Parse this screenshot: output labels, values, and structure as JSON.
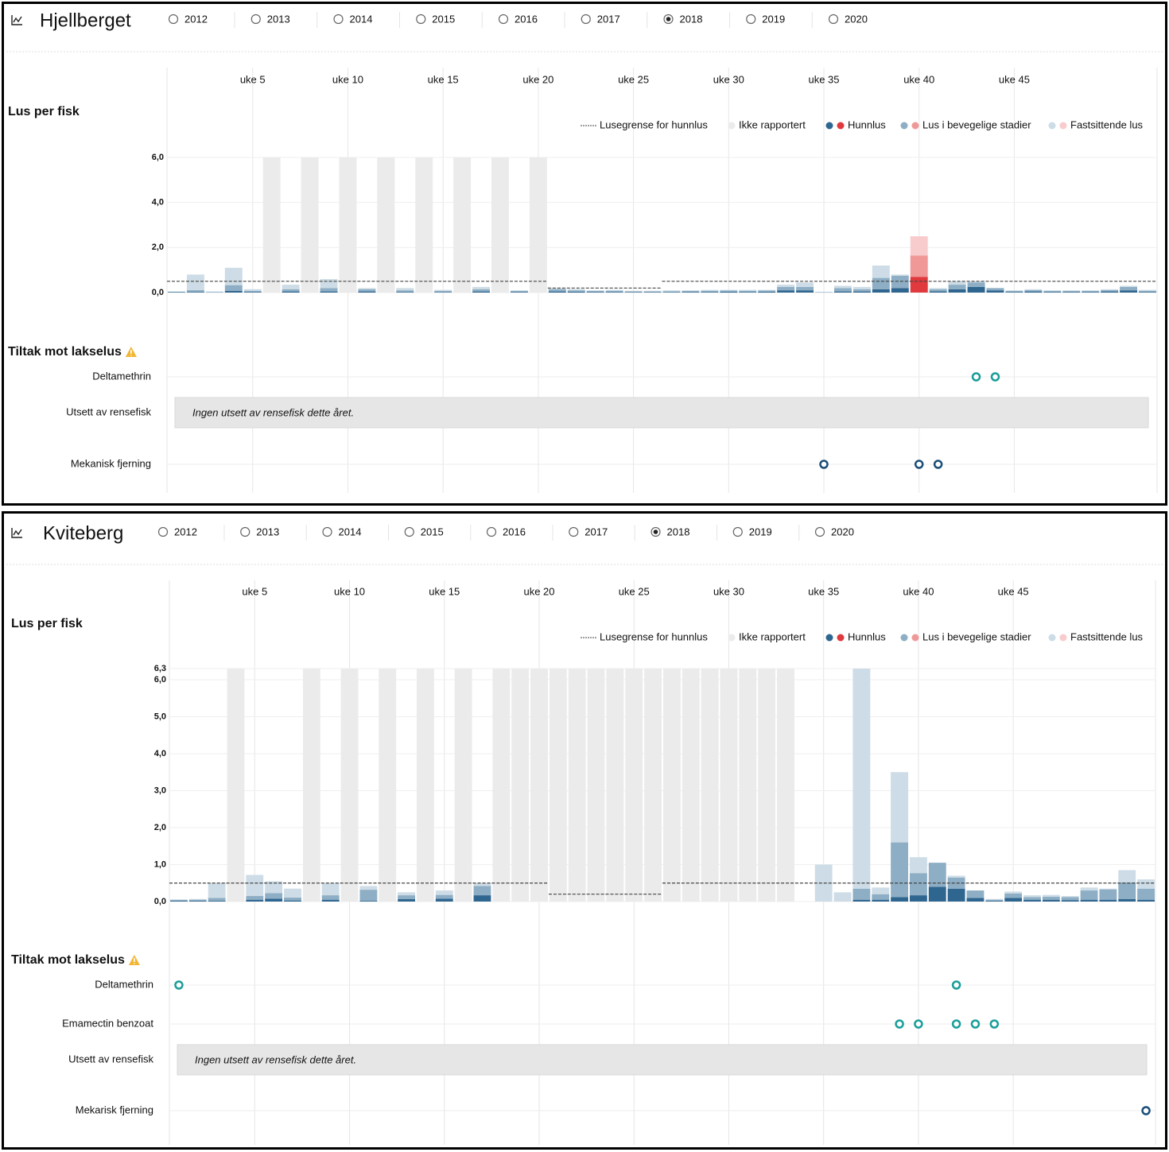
{
  "chart_data": [
    {
      "type": "bar",
      "title": "Hjellberget",
      "years": [
        2012,
        2013,
        2014,
        2015,
        2016,
        2017,
        2018,
        2019,
        2020
      ],
      "selected_year": 2018,
      "y_label": "Lus per fisk",
      "x": [
        1,
        2,
        3,
        4,
        5,
        6,
        7,
        8,
        9,
        10,
        11,
        12,
        13,
        14,
        15,
        16,
        17,
        18,
        19,
        20,
        21,
        22,
        23,
        24,
        25,
        26,
        27,
        28,
        29,
        30,
        31,
        32,
        33,
        34,
        35,
        36,
        37,
        38,
        39,
        40,
        41,
        42,
        43,
        44,
        45,
        46,
        47,
        48,
        49,
        50,
        51,
        52
      ],
      "xlim": [
        0.5,
        52.5
      ],
      "xticks": [
        {
          "value": 5,
          "label": "uke 5"
        },
        {
          "value": 10,
          "label": "uke 10"
        },
        {
          "value": 15,
          "label": "uke 15"
        },
        {
          "value": 20,
          "label": "uke 20"
        },
        {
          "value": 25,
          "label": "uke 25"
        },
        {
          "value": 30,
          "label": "uke 30"
        },
        {
          "value": 35,
          "label": "uke 35"
        },
        {
          "value": 40,
          "label": "uke 40"
        },
        {
          "value": 45,
          "label": "uke 45"
        }
      ],
      "ylim": [
        0,
        6
      ],
      "yticks": [
        {
          "value": 0,
          "label": "0,0"
        },
        {
          "value": 2,
          "label": "2,0"
        },
        {
          "value": 4,
          "label": "4,0"
        },
        {
          "value": 6,
          "label": "6,0"
        }
      ],
      "grid": true,
      "series": [
        {
          "name": "Lusegrense for hunnlus",
          "type": "line",
          "color": "#444444",
          "values": [
            0.5,
            0.5,
            0.5,
            0.5,
            0.5,
            0.5,
            0.5,
            0.5,
            0.5,
            0.5,
            0.5,
            0.5,
            0.5,
            0.5,
            0.5,
            0.5,
            0.5,
            0.5,
            0.5,
            0.5,
            0.2,
            0.2,
            0.2,
            0.2,
            0.2,
            0.2,
            0.5,
            0.5,
            0.5,
            0.5,
            0.5,
            0.5,
            0.5,
            0.5,
            0.5,
            0.5,
            0.5,
            0.5,
            0.5,
            0.5,
            0.5,
            0.5,
            0.5,
            0.5,
            0.5,
            0.5,
            0.5,
            0.5,
            0.5,
            0.5,
            0.5,
            0.5
          ]
        },
        {
          "name": "Ikke rapportert",
          "color": "#ebebeb",
          "values": [
            null,
            null,
            null,
            null,
            null,
            6,
            null,
            6,
            null,
            6,
            null,
            6,
            null,
            6,
            null,
            6,
            null,
            6,
            null,
            6,
            null,
            null,
            null,
            null,
            null,
            null,
            null,
            null,
            null,
            null,
            null,
            null,
            null,
            null,
            null,
            null,
            null,
            null,
            null,
            null,
            null,
            null,
            null,
            null,
            null,
            null,
            null,
            null,
            null,
            null,
            null,
            null
          ]
        },
        {
          "name": "Hunnlus",
          "color": "#2f6690",
          "alert_color": "#e0393e",
          "values": [
            0.02,
            0.03,
            0.01,
            0.08,
            0.03,
            null,
            0.05,
            null,
            0.05,
            null,
            0.05,
            null,
            0.03,
            null,
            0.02,
            null,
            0.05,
            null,
            0.03,
            null,
            0.05,
            0.04,
            0.03,
            0.03,
            0.02,
            0.02,
            0.02,
            0.03,
            0.03,
            0.04,
            0.03,
            0.04,
            0.1,
            0.1,
            0.01,
            0.05,
            0.05,
            0.15,
            0.2,
            0.7,
            0.06,
            0.15,
            0.25,
            0.1,
            0.03,
            0.05,
            0.03,
            0.03,
            0.03,
            0.05,
            0.1,
            0.03
          ]
        },
        {
          "name": "Lus i bevegelige stadier",
          "color": "#8daec4",
          "alert_color": "#f09898",
          "values": [
            0.02,
            0.08,
            0.02,
            0.25,
            0.05,
            null,
            0.1,
            null,
            0.15,
            null,
            0.1,
            null,
            0.07,
            null,
            0.05,
            null,
            0.1,
            null,
            0.04,
            null,
            0.1,
            0.06,
            0.04,
            0.05,
            0.03,
            0.03,
            0.04,
            0.04,
            0.05,
            0.05,
            0.05,
            0.05,
            0.15,
            0.15,
            0.01,
            0.15,
            0.1,
            0.5,
            0.55,
            0.95,
            0.09,
            0.2,
            0.2,
            0.1,
            0.04,
            0.06,
            0.04,
            0.04,
            0.04,
            0.06,
            0.15,
            0.05
          ]
        },
        {
          "name": "Fastsittende lus",
          "color": "#cddce6",
          "alert_color": "#f8cccc",
          "values": [
            0.01,
            0.69,
            0.02,
            0.77,
            0.07,
            null,
            0.2,
            null,
            0.4,
            null,
            0.05,
            null,
            0.1,
            null,
            0.05,
            null,
            0.1,
            null,
            0.03,
            null,
            0.05,
            0.05,
            0.03,
            0.04,
            0.03,
            0.03,
            0.04,
            0.03,
            0.04,
            0.03,
            0.04,
            0.03,
            0.1,
            0.2,
            0.01,
            0.1,
            0.1,
            0.55,
            0.05,
            0.85,
            0.05,
            0.15,
            0.05,
            0,
            0.03,
            0.04,
            0.03,
            0.03,
            0.03,
            0.04,
            0.05,
            0.04
          ]
        }
      ],
      "treatments_title": "Tiltak mot lakselus",
      "treatments": [
        {
          "name": "Deltamethrin",
          "color": "#1a9e9a",
          "weeks": [
            43,
            44
          ]
        },
        {
          "name": "Utsett av rensefisk",
          "note": "Ingen utsett av rensefisk dette året."
        },
        {
          "name": "Mekanisk fjerning",
          "color": "#1a4f7a",
          "weeks": [
            35,
            40,
            41
          ]
        }
      ]
    },
    {
      "type": "bar",
      "title": "Kviteberg",
      "years": [
        2012,
        2013,
        2014,
        2015,
        2016,
        2017,
        2018,
        2019,
        2020
      ],
      "selected_year": 2018,
      "y_label": "Lus per fisk",
      "x": [
        1,
        2,
        3,
        4,
        5,
        6,
        7,
        8,
        9,
        10,
        11,
        12,
        13,
        14,
        15,
        16,
        17,
        18,
        19,
        20,
        21,
        22,
        23,
        24,
        25,
        26,
        27,
        28,
        29,
        30,
        31,
        32,
        33,
        34,
        35,
        36,
        37,
        38,
        39,
        40,
        41,
        42,
        43,
        44,
        45,
        46,
        47,
        48,
        49,
        50,
        51,
        52
      ],
      "xlim": [
        0.5,
        52.5
      ],
      "xticks": [
        {
          "value": 5,
          "label": "uke 5"
        },
        {
          "value": 10,
          "label": "uke 10"
        },
        {
          "value": 15,
          "label": "uke 15"
        },
        {
          "value": 20,
          "label": "uke 20"
        },
        {
          "value": 25,
          "label": "uke 25"
        },
        {
          "value": 30,
          "label": "uke 30"
        },
        {
          "value": 35,
          "label": "uke 35"
        },
        {
          "value": 40,
          "label": "uke 40"
        },
        {
          "value": 45,
          "label": "uke 45"
        }
      ],
      "ylim": [
        0,
        6.3
      ],
      "yticks": [
        {
          "value": 0,
          "label": "0,0"
        },
        {
          "value": 1,
          "label": "1,0"
        },
        {
          "value": 2,
          "label": "2,0"
        },
        {
          "value": 3,
          "label": "3,0"
        },
        {
          "value": 4,
          "label": "4,0"
        },
        {
          "value": 5,
          "label": "5,0"
        },
        {
          "value": 6,
          "label": "6,0"
        },
        {
          "value": 6.3,
          "label": "6,3"
        }
      ],
      "grid": true,
      "series": [
        {
          "name": "Lusegrense for hunnlus",
          "type": "line",
          "color": "#444444",
          "values": [
            0.5,
            0.5,
            0.5,
            0.5,
            0.5,
            0.5,
            0.5,
            0.5,
            0.5,
            0.5,
            0.5,
            0.5,
            0.5,
            0.5,
            0.5,
            0.5,
            0.5,
            0.5,
            0.5,
            0.5,
            0.2,
            0.2,
            0.2,
            0.2,
            0.2,
            0.2,
            0.5,
            0.5,
            0.5,
            0.5,
            0.5,
            0.5,
            0.5,
            0.5,
            0.5,
            0.5,
            0.5,
            0.5,
            0.5,
            0.5,
            0.5,
            0.5,
            0.5,
            0.5,
            0.5,
            0.5,
            0.5,
            0.5,
            0.5,
            0.5,
            0.5,
            0.5
          ]
        },
        {
          "name": "Ikke rapportert",
          "color": "#ebebeb",
          "values": [
            null,
            null,
            null,
            6.3,
            null,
            null,
            null,
            6.3,
            null,
            6.3,
            null,
            6.3,
            null,
            6.3,
            null,
            6.3,
            null,
            6.3,
            6.3,
            6.3,
            6.3,
            6.3,
            6.3,
            6.3,
            6.3,
            6.3,
            6.3,
            6.3,
            6.3,
            6.3,
            6.3,
            6.3,
            6.3,
            null,
            null,
            null,
            null,
            null,
            null,
            null,
            null,
            null,
            null,
            null,
            null,
            null,
            null,
            null,
            null,
            null,
            null,
            null
          ]
        },
        {
          "name": "Hunnlus",
          "color": "#2f6690",
          "alert_color": "#e0393e",
          "values": [
            0.02,
            0.02,
            0.02,
            null,
            0.05,
            0.08,
            0.03,
            null,
            0.05,
            null,
            0.02,
            null,
            0.07,
            null,
            0.08,
            null,
            0.17,
            null,
            null,
            null,
            null,
            null,
            null,
            null,
            null,
            null,
            null,
            null,
            null,
            null,
            null,
            null,
            null,
            null,
            0,
            0,
            0.05,
            0.05,
            0.12,
            0.17,
            0.4,
            0.35,
            0.1,
            0.02,
            0.1,
            0.05,
            0.05,
            0.04,
            0.05,
            0.05,
            0.07,
            0.05
          ]
        },
        {
          "name": "Lus i bevegelige stadier",
          "color": "#8daec4",
          "alert_color": "#f09898",
          "values": [
            0.03,
            0.03,
            0.08,
            null,
            0.1,
            0.15,
            0.08,
            null,
            0.12,
            null,
            0.3,
            null,
            0.1,
            null,
            0.1,
            null,
            0.25,
            null,
            null,
            null,
            null,
            null,
            null,
            null,
            null,
            null,
            null,
            null,
            null,
            null,
            null,
            null,
            null,
            null,
            0,
            0,
            0.3,
            0.15,
            1.48,
            0.6,
            0.65,
            0.3,
            0.2,
            0.03,
            0.12,
            0.07,
            0.08,
            0.08,
            0.25,
            0.28,
            0.45,
            0.3
          ]
        },
        {
          "name": "Fastsittende lus",
          "color": "#cddce6",
          "alert_color": "#f8cccc",
          "values": [
            0,
            0.02,
            0.4,
            null,
            0.57,
            0.32,
            0.24,
            null,
            0.33,
            null,
            0.1,
            null,
            0.08,
            null,
            0.12,
            null,
            0.08,
            null,
            null,
            null,
            null,
            null,
            null,
            null,
            null,
            null,
            null,
            null,
            null,
            null,
            null,
            null,
            null,
            null,
            1.0,
            0.25,
            5.95,
            0.18,
            1.9,
            0.43,
            0,
            0.05,
            0,
            0.02,
            0.05,
            0.05,
            0.05,
            0.03,
            0.08,
            0.02,
            0.33,
            0.25
          ]
        }
      ],
      "treatments_title": "Tiltak mot lakselus",
      "treatments": [
        {
          "name": "Deltamethrin",
          "color": "#1a9e9a",
          "weeks": [
            1,
            42
          ]
        },
        {
          "name": "Emamectin benzoat",
          "color": "#1a9e9a",
          "weeks": [
            39,
            40,
            42,
            43,
            44
          ]
        },
        {
          "name": "Utsett av rensefisk",
          "note": "Ingen utsett av rensefisk dette året."
        },
        {
          "name": "Mekarisk fjerning",
          "color": "#1a4f7a",
          "weeks": [
            52
          ]
        }
      ]
    }
  ]
}
